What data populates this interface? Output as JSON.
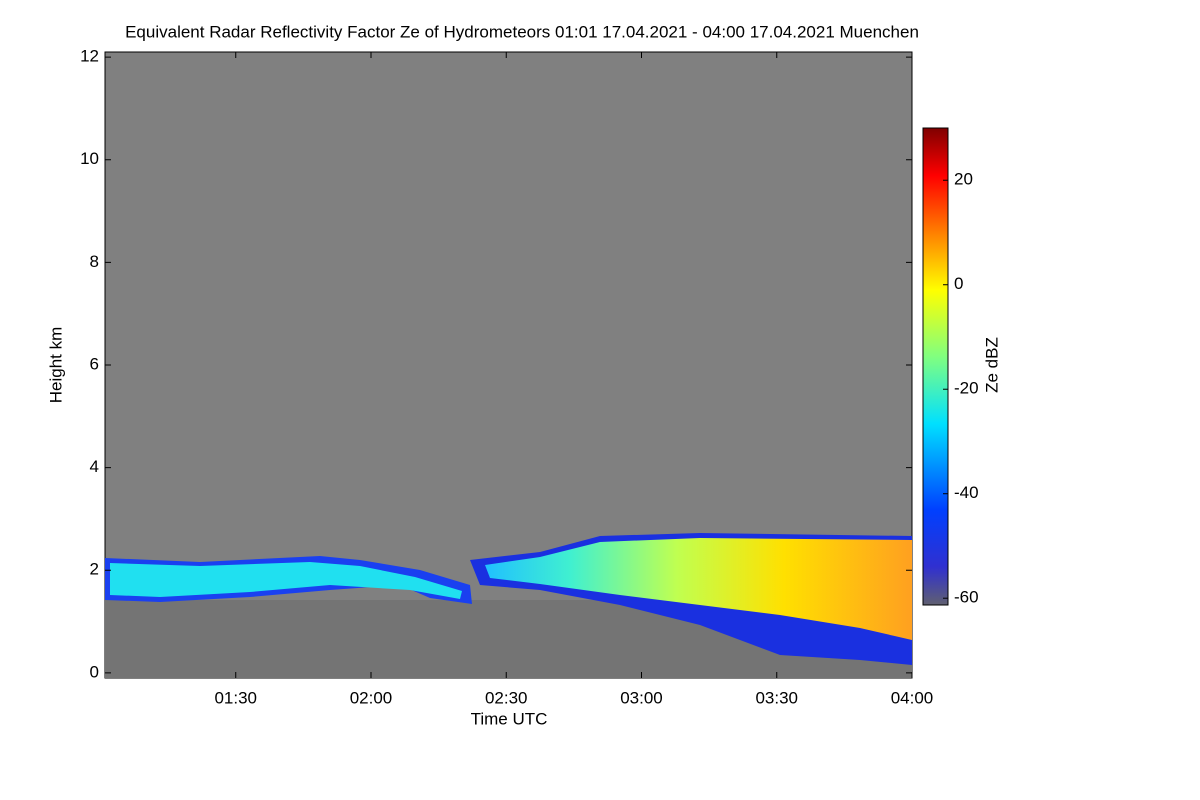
{
  "chart_data": {
    "type": "heatmap",
    "title": "Equivalent Radar Reflectivity Factor Ze of Hydrometeors   01:01 17.04.2021 - 04:00 17.04.2021 Muenchen",
    "x_label": "Time UTC",
    "y_label": "Height km",
    "xlim": [
      61,
      240
    ],
    "xticks": [
      {
        "value": 90,
        "label": "01:30"
      },
      {
        "value": 120,
        "label": "02:00"
      },
      {
        "value": 150,
        "label": "02:30"
      },
      {
        "value": 180,
        "label": "03:00"
      },
      {
        "value": 210,
        "label": "03:30"
      },
      {
        "value": 240,
        "label": "04:00"
      }
    ],
    "ylim": [
      -0.1,
      12.1
    ],
    "yticks": [
      0,
      2,
      4,
      6,
      8,
      10,
      12
    ],
    "colorbar": {
      "label": "Ze dBZ",
      "lim": [
        -61.3,
        30
      ],
      "ticks": [
        20,
        0,
        -20,
        -40,
        -60
      ]
    }
  }
}
